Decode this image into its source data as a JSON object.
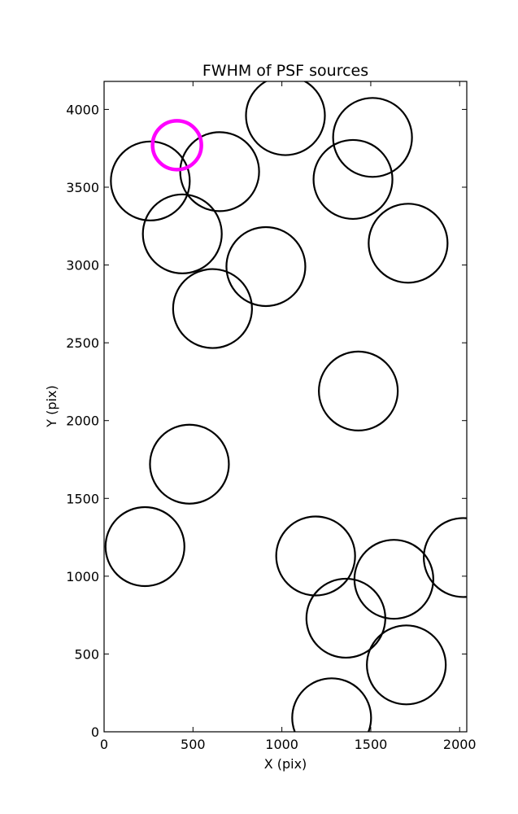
{
  "chart_data": {
    "type": "scatter",
    "title": "FWHM of PSF sources",
    "xlabel": "X (pix)",
    "ylabel": "Y (pix)",
    "xlim": [
      0,
      2040
    ],
    "ylim": [
      0,
      4180
    ],
    "xticks": [
      0,
      500,
      1000,
      1500,
      2000
    ],
    "yticks": [
      0,
      500,
      1000,
      1500,
      2000,
      2500,
      3000,
      3500,
      4000
    ],
    "grid": false,
    "legend": "none",
    "marker": "open-circle",
    "series": [
      {
        "color": "#000000",
        "points": [
          {
            "x": 1020,
            "y": 3960
          },
          {
            "x": 1510,
            "y": 3820
          },
          {
            "x": 650,
            "y": 3600
          },
          {
            "x": 260,
            "y": 3540
          },
          {
            "x": 1400,
            "y": 3550
          },
          {
            "x": 440,
            "y": 3200
          },
          {
            "x": 1710,
            "y": 3140
          },
          {
            "x": 910,
            "y": 2990
          },
          {
            "x": 610,
            "y": 2720
          },
          {
            "x": 1430,
            "y": 2190
          },
          {
            "x": 480,
            "y": 1720
          },
          {
            "x": 230,
            "y": 1190
          },
          {
            "x": 1190,
            "y": 1130
          },
          {
            "x": 1630,
            "y": 980
          },
          {
            "x": 2020,
            "y": 1120
          },
          {
            "x": 1360,
            "y": 730
          },
          {
            "x": 1700,
            "y": 430
          },
          {
            "x": 1280,
            "y": 90
          }
        ]
      },
      {
        "color": "#ff00ff",
        "points": [
          {
            "x": 410,
            "y": 3770
          }
        ]
      }
    ]
  },
  "colors": {
    "axes": "#000000",
    "background": "#ffffff",
    "highlight": "#ff00ff"
  }
}
